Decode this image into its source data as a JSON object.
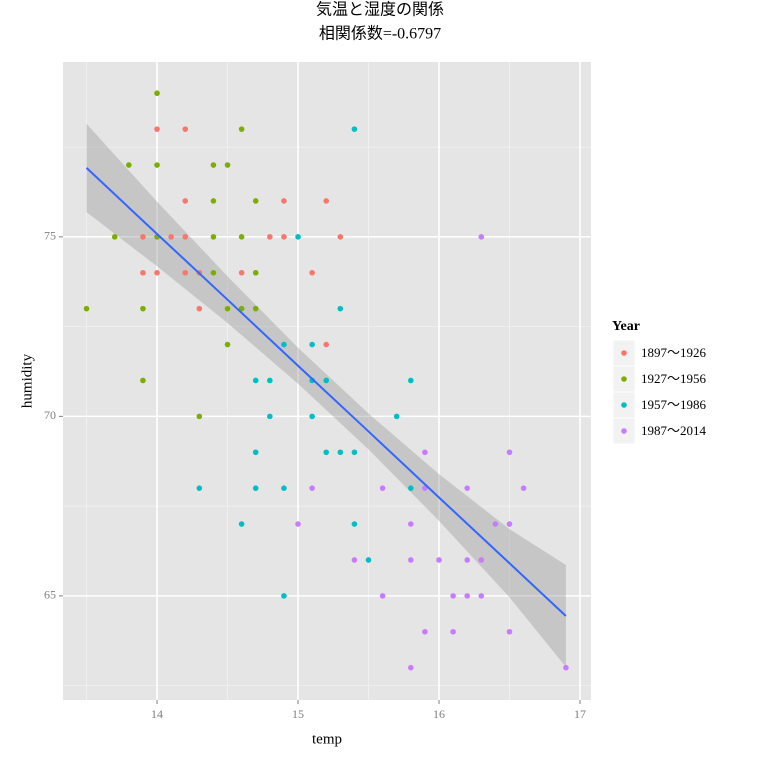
{
  "chart_data": {
    "type": "scatter",
    "title": "気温と湿度の関係",
    "subtitle": "相関係数=-0.6797",
    "x_label": "temp",
    "y_label": "humidity",
    "xlim": [
      13.333,
      17.078
    ],
    "ylim": [
      62.1,
      79.87
    ],
    "xticks": [
      14,
      15,
      16,
      17
    ],
    "yticks": [
      65,
      70,
      75
    ],
    "xminor": [
      13.5,
      14.5,
      15.5,
      16.5
    ],
    "yminor": [
      62.5,
      67.5,
      72.5,
      77.5
    ],
    "grid": true,
    "legend_title": "Year",
    "legend_position": "right",
    "series": [
      {
        "name": "1897～1926",
        "color": "#F8766D",
        "x": [
          14.0,
          14.2,
          14.2,
          14.9,
          15.2,
          13.9,
          14.1,
          14.2,
          14.8,
          14.9,
          15.3,
          13.9,
          14.0,
          14.2,
          14.3,
          14.6,
          15.1,
          14.3,
          15.2
        ],
        "values": [
          78,
          78,
          76,
          76,
          76,
          75,
          75,
          75,
          75,
          75,
          75,
          74,
          74,
          74,
          74,
          74,
          74,
          73,
          72
        ]
      },
      {
        "name": "1927～1956",
        "color": "#7CAE00",
        "x": [
          14.0,
          14.6,
          13.8,
          14.0,
          14.4,
          14.5,
          14.4,
          14.7,
          13.7,
          14.0,
          14.4,
          14.6,
          14.4,
          14.7,
          13.5,
          13.9,
          14.5,
          14.6,
          14.7,
          14.5,
          13.9,
          14.3
        ],
        "values": [
          79,
          78,
          77,
          77,
          77,
          77,
          76,
          76,
          75,
          75,
          75,
          75,
          74,
          74,
          73,
          73,
          73,
          73,
          73,
          72,
          71,
          70
        ]
      },
      {
        "name": "1957～1986",
        "color": "#00BFC4",
        "x": [
          15.4,
          15.0,
          15.3,
          14.9,
          15.1,
          14.7,
          14.8,
          15.1,
          15.2,
          15.8,
          14.8,
          15.1,
          15.7,
          14.7,
          15.2,
          15.3,
          15.4,
          14.3,
          14.7,
          14.9,
          15.8,
          14.6,
          15.4,
          15.5,
          14.9
        ],
        "values": [
          78,
          75,
          73,
          72,
          72,
          71,
          71,
          71,
          71,
          71,
          70,
          70,
          70,
          69,
          69,
          69,
          69,
          68,
          68,
          68,
          68,
          67,
          67,
          66,
          65
        ]
      },
      {
        "name": "1987～2014",
        "color": "#C77CFF",
        "x": [
          16.3,
          15.9,
          16.5,
          15.1,
          15.6,
          15.9,
          16.2,
          16.6,
          15.0,
          15.8,
          16.4,
          16.5,
          15.4,
          15.8,
          16.0,
          16.2,
          16.3,
          15.6,
          16.1,
          16.2,
          16.3,
          15.9,
          16.1,
          16.5,
          15.8,
          16.9
        ],
        "values": [
          75,
          69,
          69,
          68,
          68,
          68,
          68,
          68,
          67,
          67,
          67,
          67,
          66,
          66,
          66,
          66,
          66,
          65,
          65,
          65,
          65,
          64,
          64,
          64,
          63,
          63
        ]
      }
    ],
    "fit": {
      "color": "#3366FF",
      "band_color": "#999999",
      "x": [
        13.5,
        14.0,
        14.5,
        15.0,
        15.5,
        16.0,
        16.5,
        16.9
      ],
      "values": [
        76.92,
        75.08,
        73.25,
        71.41,
        69.58,
        67.74,
        65.91,
        64.44
      ],
      "lower": [
        75.69,
        74.18,
        72.6,
        70.91,
        69.08,
        67.09,
        64.96,
        63.02
      ],
      "upper": [
        78.15,
        75.98,
        73.9,
        71.91,
        70.08,
        68.39,
        66.86,
        65.86
      ]
    }
  }
}
